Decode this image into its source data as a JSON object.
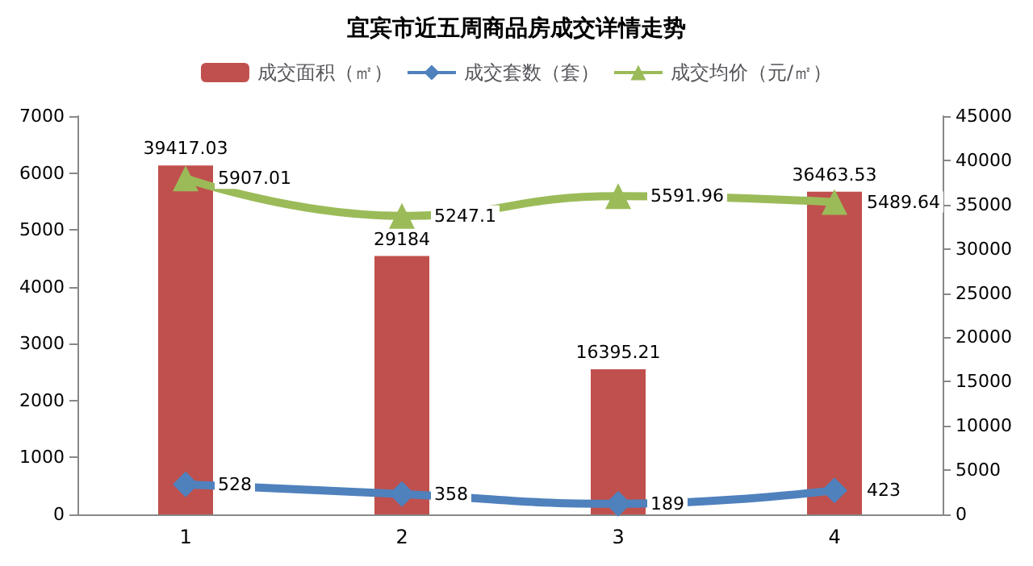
{
  "chart_data": {
    "type": "line",
    "title": "宜宾市近五周商品房成交详情走势",
    "categories": [
      "1",
      "2",
      "3",
      "4"
    ],
    "series": [
      {
        "name": "成交面积（㎡）",
        "type": "bar",
        "axis": "y2",
        "color": "#c0504d",
        "values": [
          39417.03,
          29184,
          16395.21,
          36463.53
        ]
      },
      {
        "name": "成交套数（套）",
        "marker": "diamond",
        "color": "#4f81bd",
        "values": [
          528,
          358,
          189,
          423
        ]
      },
      {
        "name": "成交均价（元/㎡）",
        "marker": "triangle",
        "color": "#9bbb59",
        "values": [
          5907.01,
          5247.1,
          5591.96,
          5489.64
        ]
      }
    ],
    "ylim": [
      0,
      7000
    ],
    "yticks": [
      0,
      1000,
      2000,
      3000,
      4000,
      5000,
      6000,
      7000
    ],
    "y2lim": [
      0,
      45000
    ],
    "y2ticks": [
      0,
      5000,
      10000,
      15000,
      20000,
      25000,
      30000,
      35000,
      40000,
      45000
    ],
    "data_labels": true,
    "legend": "top",
    "grid": false
  }
}
